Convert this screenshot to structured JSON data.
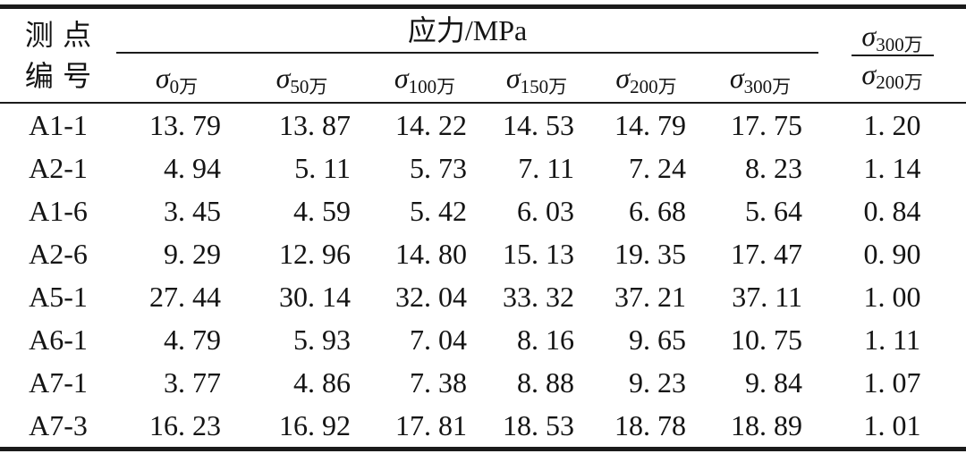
{
  "table": {
    "header": {
      "row_label_line1": "测点",
      "row_label_line2": "编号",
      "group_title": "应力/MPa",
      "stress_columns": [
        {
          "symbol": "σ",
          "sub": "0万"
        },
        {
          "symbol": "σ",
          "sub": "50万"
        },
        {
          "symbol": "σ",
          "sub": "100万"
        },
        {
          "symbol": "σ",
          "sub": "150万"
        },
        {
          "symbol": "σ",
          "sub": "200万"
        },
        {
          "symbol": "σ",
          "sub": "300万"
        }
      ],
      "ratio_column": {
        "numerator": {
          "symbol": "σ",
          "sub": "300万"
        },
        "denominator": {
          "symbol": "σ",
          "sub": "200万"
        }
      }
    },
    "rows": [
      {
        "id": "A1-1",
        "values": [
          "13. 79",
          "13. 87",
          "14. 22",
          "14. 53",
          "14. 79",
          "17. 75"
        ],
        "ratio": "1. 20"
      },
      {
        "id": "A2-1",
        "values": [
          "4. 94",
          "5. 11",
          "5. 73",
          "7. 11",
          "7. 24",
          "8. 23"
        ],
        "ratio": "1. 14"
      },
      {
        "id": "A1-6",
        "values": [
          "3. 45",
          "4. 59",
          "5. 42",
          "6. 03",
          "6. 68",
          "5. 64"
        ],
        "ratio": "0. 84"
      },
      {
        "id": "A2-6",
        "values": [
          "9. 29",
          "12. 96",
          "14. 80",
          "15. 13",
          "19. 35",
          "17. 47"
        ],
        "ratio": "0. 90"
      },
      {
        "id": "A5-1",
        "values": [
          "27. 44",
          "30. 14",
          "32. 04",
          "33. 32",
          "37. 21",
          "37. 11"
        ],
        "ratio": "1. 00"
      },
      {
        "id": "A6-1",
        "values": [
          "4. 79",
          "5. 93",
          "7. 04",
          "8. 16",
          "9. 65",
          "10. 75"
        ],
        "ratio": "1. 11"
      },
      {
        "id": "A7-1",
        "values": [
          "3. 77",
          "4. 86",
          "7. 38",
          "8. 88",
          "9. 23",
          "9. 84"
        ],
        "ratio": "1. 07"
      },
      {
        "id": "A7-3",
        "values": [
          "16. 23",
          "16. 92",
          "17. 81",
          "18. 53",
          "18. 78",
          "18. 89"
        ],
        "ratio": "1. 01"
      }
    ]
  }
}
